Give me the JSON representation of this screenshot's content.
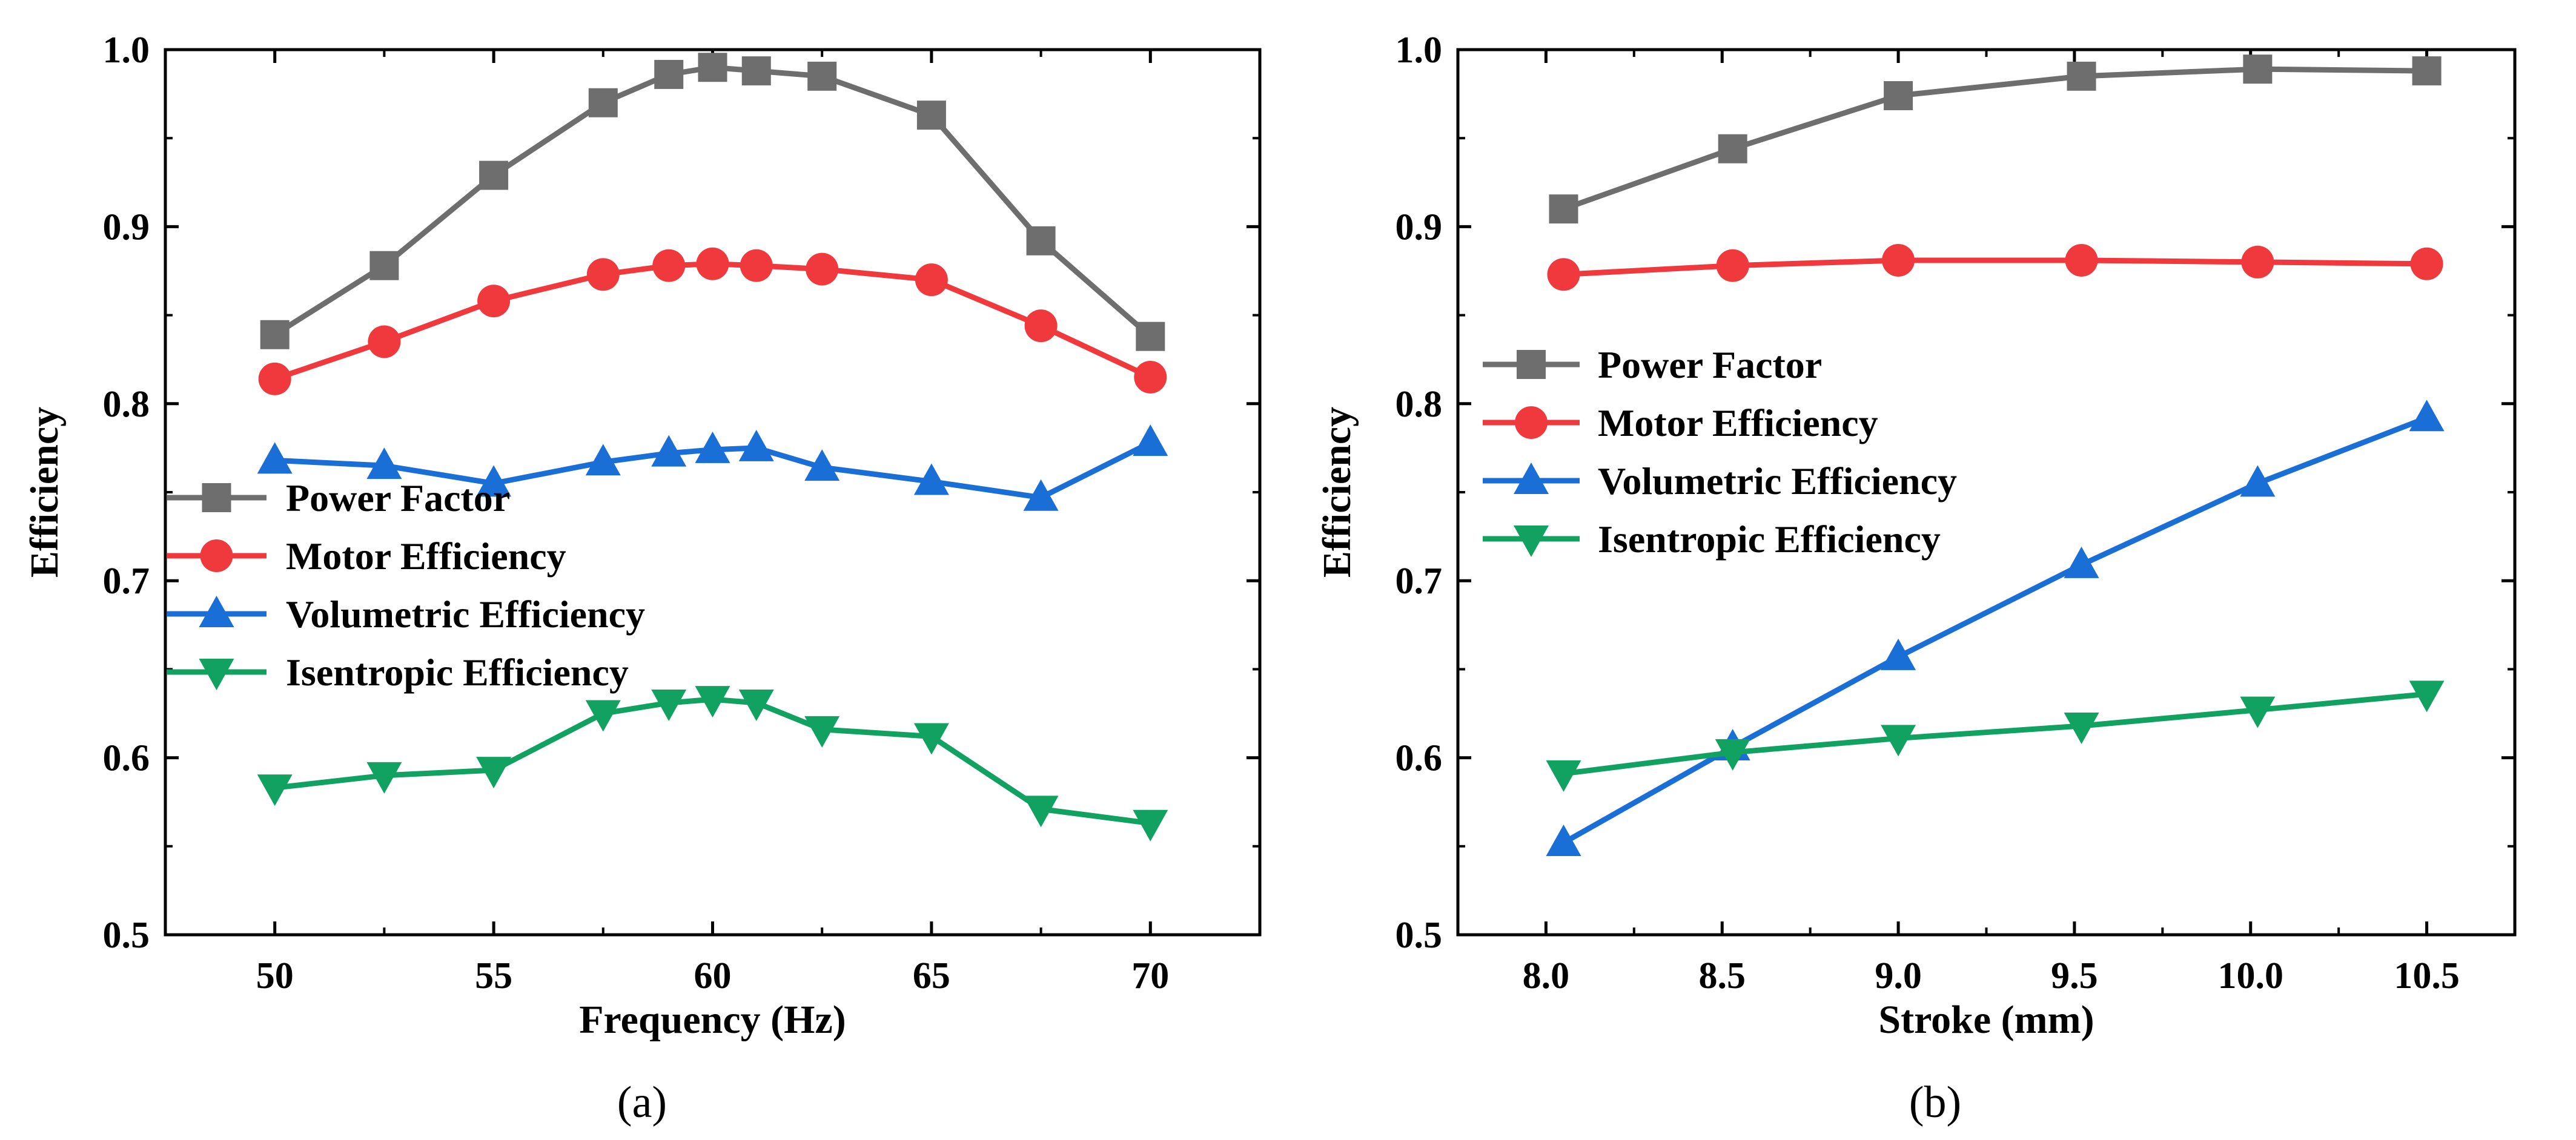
{
  "figure_captions": [
    "(a)",
    "(b)"
  ],
  "chart_data": [
    {
      "type": "line",
      "panel": "a",
      "caption": "(a)",
      "xlabel": "Frequency (Hz)",
      "ylabel": "Efficiency",
      "xlim": [
        47.5,
        72.5
      ],
      "ylim": [
        0.5,
        1.0
      ],
      "xticks": [
        50,
        55,
        60,
        65,
        70
      ],
      "xtick_labels": [
        "50",
        "55",
        "60",
        "65",
        "70"
      ],
      "yticks": [
        0.5,
        0.6,
        0.7,
        0.8,
        0.9,
        1.0
      ],
      "ytick_labels": [
        "0.5",
        "0.6",
        "0.7",
        "0.8",
        "0.9",
        "1.0"
      ],
      "legend_position": "left",
      "x": [
        50,
        52.5,
        55,
        57.5,
        59,
        60,
        61,
        62.5,
        65,
        67.5,
        70
      ],
      "series": [
        {
          "name": "Power Factor",
          "marker": "square",
          "color": "#6e6e6e",
          "values": [
            0.839,
            0.878,
            0.929,
            0.97,
            0.986,
            0.99,
            0.988,
            0.985,
            0.963,
            0.892,
            0.838
          ]
        },
        {
          "name": "Motor Efficiency",
          "marker": "circle",
          "color": "#f0393c",
          "values": [
            0.814,
            0.835,
            0.858,
            0.873,
            0.878,
            0.879,
            0.878,
            0.876,
            0.87,
            0.844,
            0.815
          ]
        },
        {
          "name": "Volumetric Efficiency",
          "marker": "triangle-up",
          "color": "#1a6fd6",
          "values": [
            0.768,
            0.765,
            0.755,
            0.767,
            0.772,
            0.774,
            0.775,
            0.764,
            0.756,
            0.747,
            0.778
          ]
        },
        {
          "name": "Isentropic Efficiency",
          "marker": "triangle-down",
          "color": "#11a160",
          "values": [
            0.583,
            0.59,
            0.593,
            0.625,
            0.631,
            0.633,
            0.631,
            0.616,
            0.612,
            0.571,
            0.563
          ]
        }
      ]
    },
    {
      "type": "line",
      "panel": "b",
      "caption": "(b)",
      "xlabel": "Stroke (mm)",
      "ylabel": "Efficiency",
      "xlim": [
        7.75,
        10.75
      ],
      "ylim": [
        0.5,
        1.0
      ],
      "xticks": [
        8.0,
        8.5,
        9.0,
        9.5,
        10.0,
        10.5
      ],
      "xtick_labels": [
        "8.0",
        "8.5",
        "9.0",
        "9.5",
        "10.0",
        "10.5"
      ],
      "yticks": [
        0.5,
        0.6,
        0.7,
        0.8,
        0.9,
        1.0
      ],
      "ytick_labels": [
        "0.5",
        "0.6",
        "0.7",
        "0.8",
        "0.9",
        "1.0"
      ],
      "legend_position": "upper-left",
      "x": [
        8.05,
        8.53,
        9.0,
        9.52,
        10.02,
        10.5
      ],
      "series": [
        {
          "name": "Power Factor",
          "marker": "square",
          "color": "#6e6e6e",
          "values": [
            0.91,
            0.944,
            0.974,
            0.985,
            0.989,
            0.988
          ]
        },
        {
          "name": "Motor Efficiency",
          "marker": "circle",
          "color": "#f0393c",
          "values": [
            0.873,
            0.878,
            0.881,
            0.881,
            0.88,
            0.879
          ]
        },
        {
          "name": "Volumetric Efficiency",
          "marker": "triangle-up",
          "color": "#1a6fd6",
          "values": [
            0.552,
            0.606,
            0.657,
            0.709,
            0.755,
            0.792
          ]
        },
        {
          "name": "Isentropic Efficiency",
          "marker": "triangle-down",
          "color": "#11a160",
          "values": [
            0.591,
            0.603,
            0.611,
            0.618,
            0.627,
            0.636
          ]
        }
      ]
    }
  ]
}
